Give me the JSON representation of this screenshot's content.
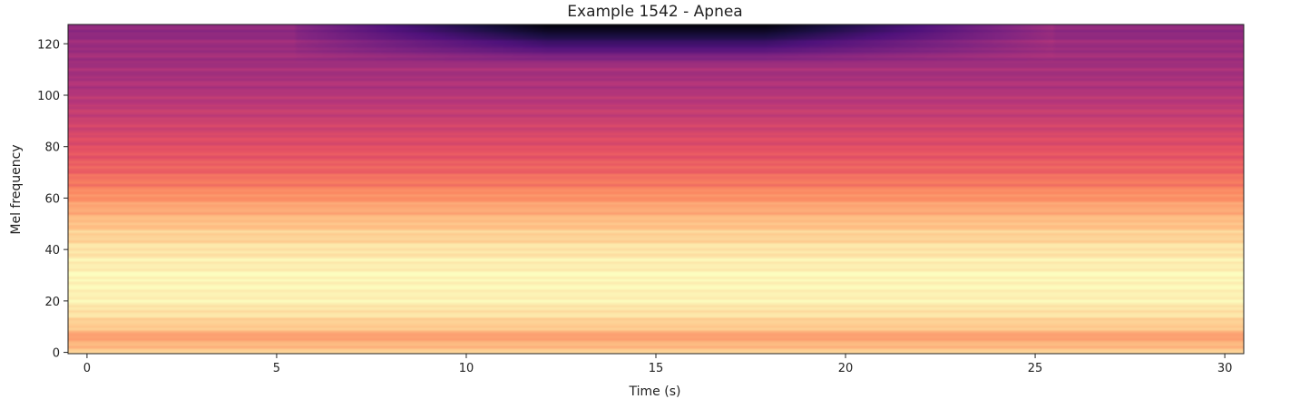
{
  "chart_data": {
    "type": "heatmap",
    "title": "Example 1542 - Apnea",
    "xlabel": "Time (s)",
    "ylabel": "Mel frequency",
    "xlim": [
      -0.5,
      30.5
    ],
    "ylim": [
      -0.5,
      127.5
    ],
    "xticks": [
      0,
      5,
      10,
      15,
      20,
      25,
      30
    ],
    "yticks": [
      0,
      20,
      40,
      60,
      80,
      100,
      120
    ],
    "colormap": "magma",
    "grid": false,
    "colormap_stops": [
      [
        0.0,
        "#000004"
      ],
      [
        0.13,
        "#1c1044"
      ],
      [
        0.25,
        "#4f127b"
      ],
      [
        0.38,
        "#812581"
      ],
      [
        0.5,
        "#b5367a"
      ],
      [
        0.63,
        "#e55064"
      ],
      [
        0.75,
        "#fb8761"
      ],
      [
        0.88,
        "#fec287"
      ],
      [
        1.0,
        "#fcfdbf"
      ]
    ],
    "intensity_profile_by_mel_bin": [
      {
        "mel": 0,
        "level": 0.92
      },
      {
        "mel": 3,
        "level": 0.85
      },
      {
        "mel": 6,
        "level": 0.8
      },
      {
        "mel": 10,
        "level": 0.9
      },
      {
        "mel": 20,
        "level": 0.98
      },
      {
        "mel": 30,
        "level": 0.99
      },
      {
        "mel": 40,
        "level": 0.95
      },
      {
        "mel": 50,
        "level": 0.88
      },
      {
        "mel": 60,
        "level": 0.78
      },
      {
        "mel": 70,
        "level": 0.68
      },
      {
        "mel": 80,
        "level": 0.62
      },
      {
        "mel": 90,
        "level": 0.56
      },
      {
        "mel": 100,
        "level": 0.5
      },
      {
        "mel": 110,
        "level": 0.46
      },
      {
        "mel": 120,
        "level": 0.44
      },
      {
        "mel": 127,
        "level": 0.4
      }
    ],
    "high_band_dip": {
      "from_time": 5.5,
      "to_time": 25.5,
      "center_time": 15.0,
      "min_level": 0.02,
      "from_mel": 112
    }
  }
}
